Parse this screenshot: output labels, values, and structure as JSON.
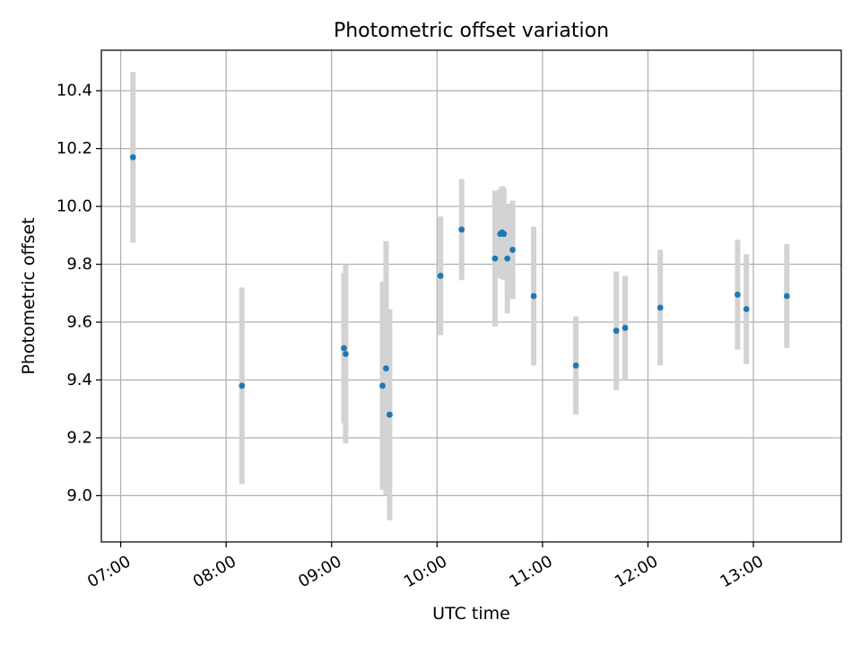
{
  "chart_data": {
    "type": "scatter",
    "title": "Photometric offset variation",
    "xlabel": "UTC time",
    "ylabel": "Photometric offset",
    "x_ticks": [
      "07:00",
      "08:00",
      "09:00",
      "10:00",
      "11:00",
      "12:00",
      "13:00"
    ],
    "y_ticks": [
      "9.0",
      "9.2",
      "9.4",
      "9.6",
      "9.8",
      "10.0",
      "10.2",
      "10.4"
    ],
    "xlim": [
      "06:49",
      "13:50"
    ],
    "ylim": [
      8.84,
      10.54
    ],
    "grid": true,
    "colors": {
      "marker": "#1f77b4",
      "errorbar": "#d3d3d3",
      "grid": "#b0b0b0"
    },
    "points": [
      {
        "x": "07:07",
        "y": 10.17,
        "yerr": 0.295
      },
      {
        "x": "08:09",
        "y": 9.38,
        "yerr": 0.34
      },
      {
        "x": "09:07",
        "y": 9.51,
        "yerr": 0.26
      },
      {
        "x": "09:08",
        "y": 9.49,
        "yerr": 0.31
      },
      {
        "x": "09:29",
        "y": 9.38,
        "yerr": 0.36
      },
      {
        "x": "09:31",
        "y": 9.44,
        "yerr": 0.44
      },
      {
        "x": "09:33",
        "y": 9.28,
        "yerr": 0.365
      },
      {
        "x": "10:02",
        "y": 9.76,
        "yerr": 0.205
      },
      {
        "x": "10:14",
        "y": 9.92,
        "yerr": 0.175
      },
      {
        "x": "10:33",
        "y": 9.82,
        "yerr": 0.235
      },
      {
        "x": "10:36",
        "y": 9.905,
        "yerr": 0.155
      },
      {
        "x": "10:37",
        "y": 9.91,
        "yerr": 0.16
      },
      {
        "x": "10:38",
        "y": 9.905,
        "yerr": 0.16
      },
      {
        "x": "10:40",
        "y": 9.82,
        "yerr": 0.19
      },
      {
        "x": "10:43",
        "y": 9.85,
        "yerr": 0.17
      },
      {
        "x": "10:55",
        "y": 9.69,
        "yerr": 0.24
      },
      {
        "x": "11:19",
        "y": 9.45,
        "yerr": 0.17
      },
      {
        "x": "11:42",
        "y": 9.57,
        "yerr": 0.205
      },
      {
        "x": "11:47",
        "y": 9.58,
        "yerr": 0.18
      },
      {
        "x": "12:07",
        "y": 9.65,
        "yerr": 0.2
      },
      {
        "x": "12:51",
        "y": 9.695,
        "yerr": 0.19
      },
      {
        "x": "12:56",
        "y": 9.645,
        "yerr": 0.19
      },
      {
        "x": "13:19",
        "y": 9.69,
        "yerr": 0.18
      }
    ]
  }
}
